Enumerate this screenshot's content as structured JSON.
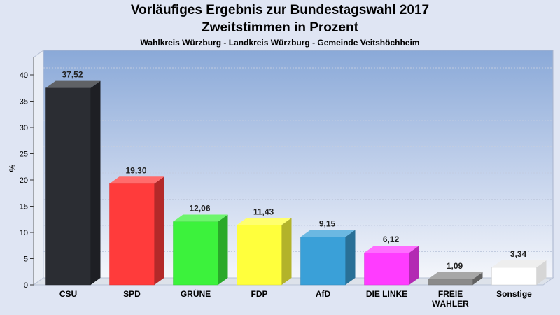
{
  "chart_data": {
    "type": "bar",
    "title": "Vorläufiges Ergebnis zur Bundestagswahl 2017",
    "subtitle": "Zweitstimmen in Prozent",
    "subtitle2": "Wahlkreis Würzburg - Landkreis Würzburg - Gemeinde Veitshöchheim",
    "xlabel": "",
    "ylabel": "%",
    "ylim": [
      0,
      40
    ],
    "yticks": [
      0,
      5,
      10,
      15,
      20,
      25,
      30,
      35,
      40
    ],
    "grid": true,
    "categories": [
      "CSU",
      "SPD",
      "GRÜNE",
      "FDP",
      "AfD",
      "DIE LINKE",
      "FREIE WÄHLER",
      "Sonstige"
    ],
    "category_lines": [
      [
        "CSU"
      ],
      [
        "SPD"
      ],
      [
        "GRÜNE"
      ],
      [
        "FDP"
      ],
      [
        "AfD"
      ],
      [
        "DIE LINKE"
      ],
      [
        "FREIE",
        "WÄHLER"
      ],
      [
        "Sonstige"
      ]
    ],
    "values": [
      37.52,
      19.3,
      12.06,
      11.43,
      9.15,
      6.12,
      1.09,
      3.34
    ],
    "value_labels": [
      "37,52",
      "19,30",
      "12,06",
      "11,43",
      "9,15",
      "6,12",
      "1,09",
      "3,34"
    ],
    "colors": [
      "#2b2d33",
      "#ff3b3b",
      "#3cf23c",
      "#ffff3c",
      "#3aa0d8",
      "#ff3cff",
      "#8a8a8a",
      "#ffffff"
    ]
  }
}
